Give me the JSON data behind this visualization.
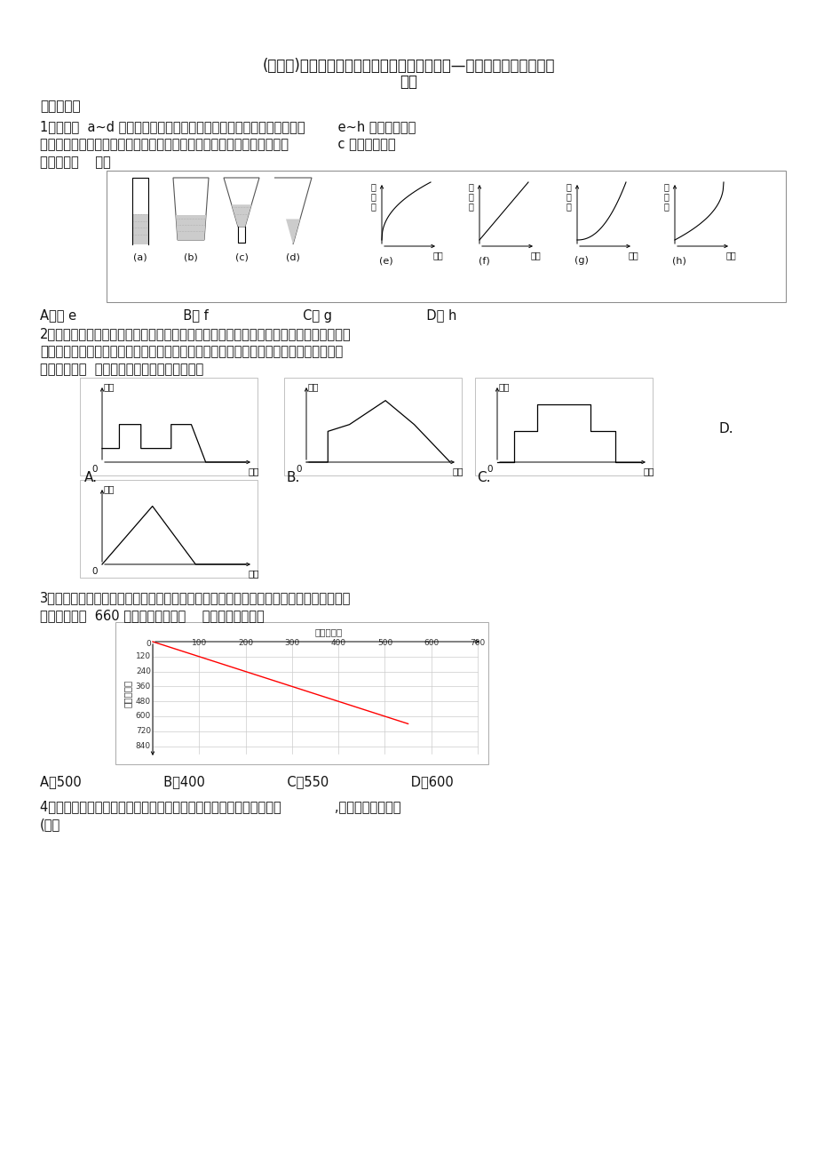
{
  "bg_color": "#ffffff",
  "title_line1": "(必考题)小学数学六年级上册第八单元数学广角—数与形测试（含答案解",
  "title_line2": "析）",
  "section1": "一、选择题",
  "q1_line1": "1．如下图  a~d 是水滴进玻璃容器的示意图（滴水速度相同），如下图        e~h 表示的是容器",
  "q1_line2": "中水的高度随滴水时间变化的情况（图中刻度、单位都相同），与示意图            c 容器相对应的",
  "q1_line3": "统计图是（    ）。",
  "q1_options": "A．图 e                          B图 f                       C图 g                       D图 h",
  "q2_line1": "2．甲、乙、丙住同一个单元，甲家在一楼，乙家在三楼，丙住五楼。昨天下午，甲先到乙",
  "q2_line2": "家，等乙扫完地后，他们去找丙；刚上五楼就遇到抱着篮球的丙，于是三人立即一起下楼",
  "q2_line3": "去玩。下面（  ）比较准确地描述了甲的活动。",
  "q3_line1": "3．服装厂制作一批新款女式短裙，下图是制作短裙的数量和所用布料的变化情况。从图中",
  "q3_line2": "可以看出，用  660 米布料可以制作（    ）条这样的短裙。",
  "q3_options": "A．500                    B．400                    C．550                    D．600",
  "q4_line1": "4．下图表示的是学校足球队乘车去体育馆训练，然后返回学校的过程             ,下面说法错误的是",
  "q4_line2": "(）。"
}
